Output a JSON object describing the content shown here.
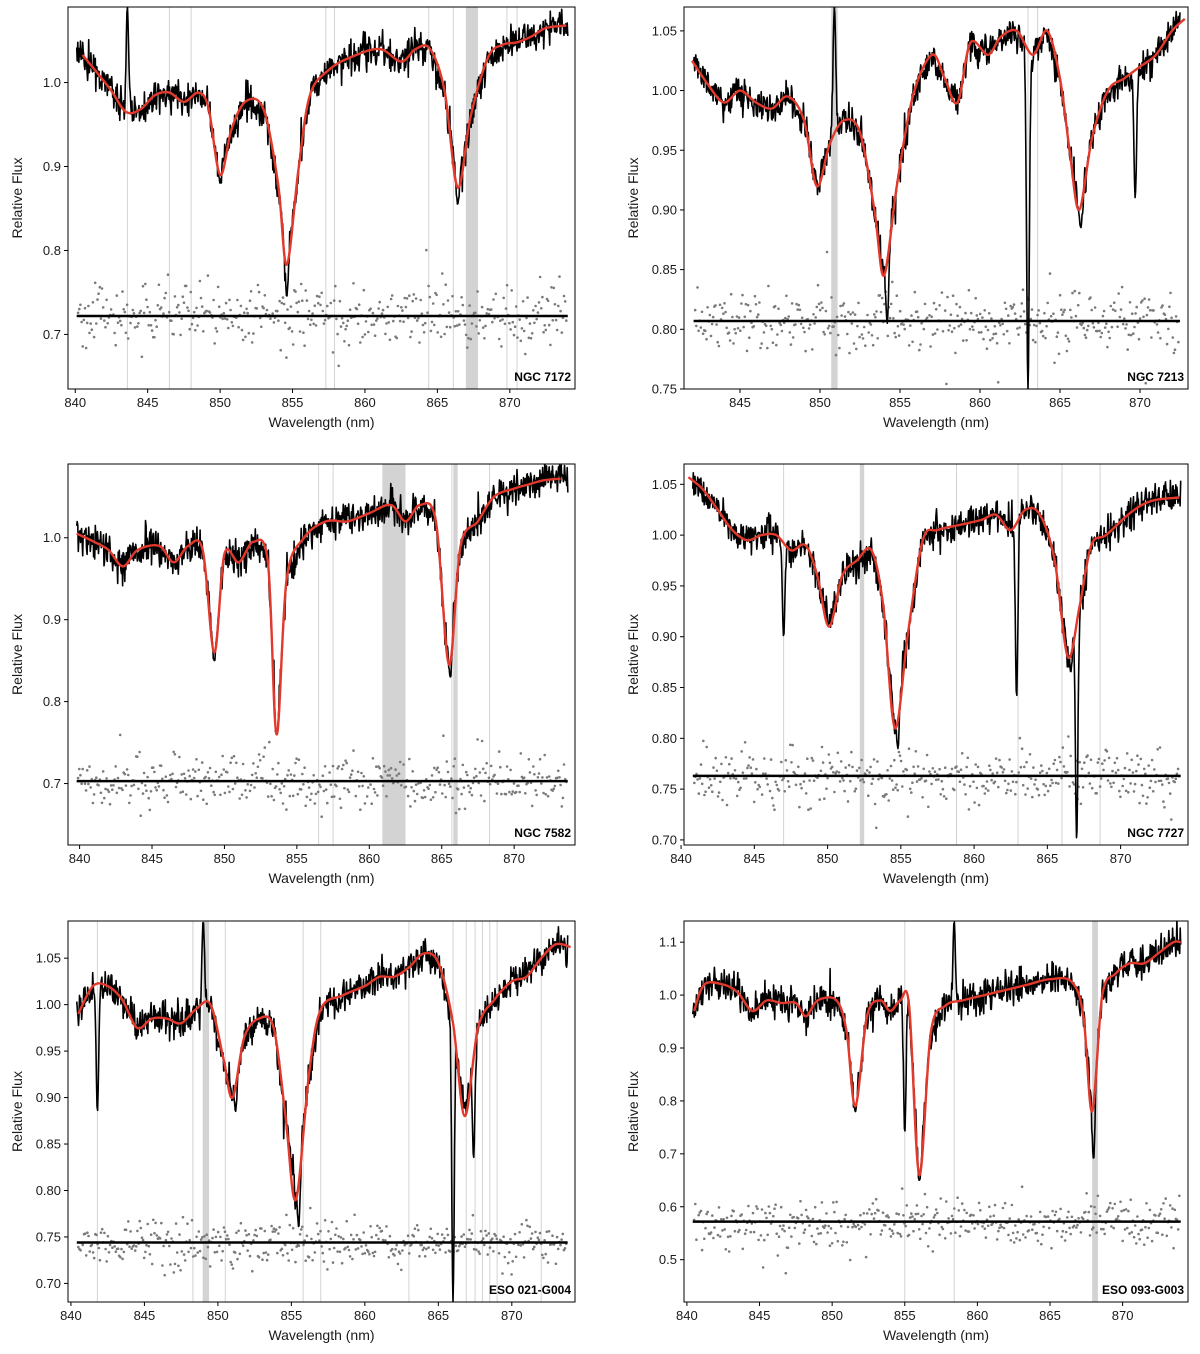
{
  "figure": {
    "colors": {
      "data": "#000000",
      "model": "#e3392c",
      "residuals": "#7a7a7a",
      "masked": "#d3d3d3",
      "zero_line": "#000000"
    }
  },
  "chart_data": [
    {
      "type": "line",
      "object_label": "NGC 7172",
      "xlabel": "Wavelength (nm)",
      "ylabel": "Relative Flux",
      "xlim": [
        839.5,
        874.5
      ],
      "ylim": [
        0.635,
        1.09
      ],
      "xticks": [
        840,
        845,
        850,
        855,
        860,
        865,
        870
      ],
      "xtick_labels": [
        "840",
        "845",
        "850",
        "855",
        "860",
        "865",
        "870"
      ],
      "yticks": [
        0.7,
        0.8,
        0.9,
        1.0
      ],
      "ytick_labels": [
        "0.7",
        "0.8",
        "0.9",
        "1.0"
      ],
      "residual_zero_level": 0.722,
      "masked_lines": [
        843.6,
        846.5,
        848.0,
        857.3,
        857.9,
        864.4,
        866.1,
        867.0,
        867.4,
        867.6,
        869.8,
        870.5
      ],
      "masked_bands": [
        [
          867.0,
          867.8
        ]
      ],
      "model_points": [
        [
          840.5,
          1.033
        ],
        [
          841.5,
          1.012
        ],
        [
          842.5,
          0.99
        ],
        [
          843.5,
          0.965
        ],
        [
          844.5,
          0.968
        ],
        [
          845.5,
          0.985
        ],
        [
          846.5,
          0.988
        ],
        [
          847.5,
          0.977
        ],
        [
          848.5,
          0.988
        ],
        [
          849.2,
          0.97
        ],
        [
          850.0,
          0.89
        ],
        [
          850.8,
          0.945
        ],
        [
          851.8,
          0.978
        ],
        [
          853.0,
          0.968
        ],
        [
          854.0,
          0.88
        ],
        [
          854.6,
          0.783
        ],
        [
          855.4,
          0.895
        ],
        [
          856.2,
          0.985
        ],
        [
          857.5,
          1.015
        ],
        [
          859.0,
          1.03
        ],
        [
          861.0,
          1.04
        ],
        [
          862.5,
          1.025
        ],
        [
          863.5,
          1.04
        ],
        [
          864.5,
          1.04
        ],
        [
          865.5,
          0.99
        ],
        [
          866.4,
          0.875
        ],
        [
          867.3,
          0.96
        ],
        [
          868.5,
          1.03
        ],
        [
          869.5,
          1.045
        ],
        [
          870.5,
          1.048
        ],
        [
          871.5,
          1.055
        ],
        [
          872.5,
          1.065
        ],
        [
          873.9,
          1.068
        ]
      ],
      "data_features": [
        {
          "x": 854.6,
          "y": 0.745
        },
        {
          "x": 850.0,
          "y": 0.88
        },
        {
          "x": 866.4,
          "y": 0.855
        },
        {
          "x": 843.6,
          "y": 1.09
        }
      ],
      "residual_scatter": 0.017
    },
    {
      "type": "line",
      "object_label": "NGC 7213",
      "xlabel": "Wavelength (nm)",
      "ylabel": "Relative Flux",
      "xlim": [
        841.5,
        873.0
      ],
      "ylim": [
        0.75,
        1.07
      ],
      "xticks": [
        845,
        850,
        855,
        860,
        865,
        870
      ],
      "xtick_labels": [
        "845",
        "850",
        "855",
        "860",
        "865",
        "870"
      ],
      "yticks": [
        0.75,
        0.8,
        0.85,
        0.9,
        0.95,
        1.0,
        1.05
      ],
      "ytick_labels": [
        "0.75",
        "0.80",
        "0.85",
        "0.90",
        "0.95",
        "1.00",
        "1.05"
      ],
      "residual_zero_level": 0.807,
      "masked_lines": [
        850.9,
        863.0,
        863.6
      ],
      "masked_bands": [
        [
          850.7,
          851.1
        ]
      ],
      "model_points": [
        [
          842.0,
          1.025
        ],
        [
          843.0,
          1.005
        ],
        [
          844.0,
          0.99
        ],
        [
          845.0,
          1.0
        ],
        [
          846.0,
          0.99
        ],
        [
          847.0,
          0.985
        ],
        [
          848.0,
          0.995
        ],
        [
          849.0,
          0.975
        ],
        [
          849.8,
          0.92
        ],
        [
          850.6,
          0.955
        ],
        [
          851.5,
          0.975
        ],
        [
          852.5,
          0.965
        ],
        [
          853.4,
          0.9
        ],
        [
          854.0,
          0.845
        ],
        [
          854.8,
          0.92
        ],
        [
          855.8,
          0.995
        ],
        [
          857.0,
          1.03
        ],
        [
          857.8,
          1.01
        ],
        [
          858.6,
          0.99
        ],
        [
          859.4,
          1.04
        ],
        [
          860.5,
          1.03
        ],
        [
          861.3,
          1.045
        ],
        [
          862.3,
          1.05
        ],
        [
          863.3,
          1.03
        ],
        [
          864.2,
          1.05
        ],
        [
          865.0,
          1.01
        ],
        [
          865.6,
          0.95
        ],
        [
          866.2,
          0.9
        ],
        [
          867.0,
          0.96
        ],
        [
          868.0,
          1.0
        ],
        [
          869.0,
          1.01
        ],
        [
          870.0,
          1.02
        ],
        [
          871.0,
          1.03
        ],
        [
          872.0,
          1.05
        ],
        [
          872.8,
          1.06
        ]
      ],
      "data_features": [
        {
          "x": 854.2,
          "y": 0.805
        },
        {
          "x": 866.3,
          "y": 0.885
        },
        {
          "x": 850.9,
          "y": 1.07
        },
        {
          "x": 863.0,
          "y": 0.75
        },
        {
          "x": 869.7,
          "y": 0.91
        }
      ],
      "residual_scatter": 0.012
    },
    {
      "type": "line",
      "object_label": "NGC 7582",
      "xlabel": "Wavelength (nm)",
      "ylabel": "Relative Flux",
      "xlim": [
        839.2,
        874.2
      ],
      "ylim": [
        0.625,
        1.09
      ],
      "xticks": [
        840,
        845,
        850,
        855,
        860,
        865,
        870
      ],
      "xtick_labels": [
        "840",
        "845",
        "850",
        "855",
        "860",
        "865",
        "870"
      ],
      "yticks": [
        0.7,
        0.8,
        0.9,
        1.0
      ],
      "ytick_labels": [
        "0.7",
        "0.8",
        "0.9",
        "1.0"
      ],
      "residual_zero_level": 0.703,
      "masked_lines": [
        856.5,
        857.5,
        865.7,
        868.3
      ],
      "masked_bands": [
        [
          860.9,
          862.5
        ],
        [
          865.8,
          866.1
        ]
      ],
      "model_points": [
        [
          839.8,
          1.005
        ],
        [
          841.0,
          0.995
        ],
        [
          842.0,
          0.985
        ],
        [
          843.0,
          0.965
        ],
        [
          844.0,
          0.985
        ],
        [
          845.5,
          0.99
        ],
        [
          846.5,
          0.97
        ],
        [
          847.5,
          0.99
        ],
        [
          848.5,
          0.985
        ],
        [
          849.3,
          0.86
        ],
        [
          850.0,
          0.98
        ],
        [
          851.0,
          0.97
        ],
        [
          852.0,
          0.995
        ],
        [
          853.0,
          0.97
        ],
        [
          853.6,
          0.76
        ],
        [
          854.3,
          0.95
        ],
        [
          855.5,
          1.0
        ],
        [
          857.0,
          1.02
        ],
        [
          858.5,
          1.02
        ],
        [
          860.0,
          1.03
        ],
        [
          861.5,
          1.04
        ],
        [
          862.5,
          1.02
        ],
        [
          863.5,
          1.04
        ],
        [
          864.6,
          1.02
        ],
        [
          865.5,
          0.845
        ],
        [
          866.3,
          0.99
        ],
        [
          867.5,
          1.02
        ],
        [
          868.6,
          1.05
        ],
        [
          870.0,
          1.06
        ],
        [
          871.0,
          1.065
        ],
        [
          872.0,
          1.07
        ],
        [
          873.2,
          1.072
        ]
      ],
      "data_features": [
        {
          "x": 853.6,
          "y": 0.76
        },
        {
          "x": 849.3,
          "y": 0.85
        },
        {
          "x": 865.6,
          "y": 0.83
        }
      ],
      "residual_scatter": 0.016
    },
    {
      "type": "line",
      "object_label": "NGC 7727",
      "xlabel": "Wavelength (nm)",
      "ylabel": "Relative Flux",
      "xlim": [
        840.2,
        874.6
      ],
      "ylim": [
        0.695,
        1.07
      ],
      "xticks": [
        840,
        845,
        850,
        855,
        860,
        865,
        870
      ],
      "xtick_labels": [
        "840",
        "845",
        "850",
        "855",
        "860",
        "865",
        "870"
      ],
      "yticks": [
        0.7,
        0.75,
        0.8,
        0.85,
        0.9,
        0.95,
        1.0,
        1.05
      ],
      "ytick_labels": [
        "0.70",
        "0.75",
        "0.80",
        "0.85",
        "0.90",
        "0.95",
        "1.00",
        "1.05"
      ],
      "residual_zero_level": 0.763,
      "masked_lines": [
        847.0,
        858.8,
        863.0,
        866.0,
        868.6
      ],
      "masked_bands": [
        [
          852.2,
          852.5
        ]
      ],
      "model_points": [
        [
          840.5,
          1.057
        ],
        [
          841.5,
          1.045
        ],
        [
          842.5,
          1.025
        ],
        [
          843.5,
          1.005
        ],
        [
          844.5,
          0.995
        ],
        [
          845.5,
          1.0
        ],
        [
          846.5,
          1.0
        ],
        [
          847.5,
          0.985
        ],
        [
          848.5,
          0.99
        ],
        [
          849.3,
          0.96
        ],
        [
          850.1,
          0.91
        ],
        [
          851.0,
          0.96
        ],
        [
          852.0,
          0.975
        ],
        [
          853.0,
          0.985
        ],
        [
          853.8,
          0.93
        ],
        [
          854.6,
          0.81
        ],
        [
          855.5,
          0.905
        ],
        [
          856.5,
          0.995
        ],
        [
          857.5,
          1.005
        ],
        [
          859.0,
          1.01
        ],
        [
          860.5,
          1.015
        ],
        [
          861.5,
          1.02
        ],
        [
          862.5,
          1.005
        ],
        [
          863.5,
          1.025
        ],
        [
          864.5,
          1.02
        ],
        [
          865.5,
          0.975
        ],
        [
          866.4,
          0.88
        ],
        [
          867.2,
          0.93
        ],
        [
          868.0,
          0.99
        ],
        [
          869.0,
          1.0
        ],
        [
          870.5,
          1.02
        ],
        [
          871.5,
          1.03
        ],
        [
          872.5,
          1.035
        ],
        [
          874.0,
          1.037
        ]
      ],
      "data_features": [
        {
          "x": 854.8,
          "y": 0.79
        },
        {
          "x": 866.6,
          "y": 0.865
        },
        {
          "x": 847.0,
          "y": 0.9
        },
        {
          "x": 862.9,
          "y": 0.84
        },
        {
          "x": 867.0,
          "y": 0.7
        }
      ],
      "residual_scatter": 0.014
    },
    {
      "type": "line",
      "object_label": "ESO 021-G004",
      "xlabel": "Wavelength (nm)",
      "ylabel": "Relative Flux",
      "xlim": [
        839.8,
        874.3
      ],
      "ylim": [
        0.68,
        1.09
      ],
      "xticks": [
        840,
        845,
        850,
        855,
        860,
        865,
        870
      ],
      "xtick_labels": [
        "840",
        "845",
        "850",
        "855",
        "860",
        "865",
        "870"
      ],
      "yticks": [
        0.7,
        0.75,
        0.8,
        0.85,
        0.9,
        0.95,
        1.0,
        1.05
      ],
      "ytick_labels": [
        "0.70",
        "0.75",
        "0.80",
        "0.85",
        "0.90",
        "0.95",
        "1.00",
        "1.05"
      ],
      "residual_zero_level": 0.744,
      "masked_lines": [
        841.8,
        848.3,
        849.0,
        850.5,
        855.8,
        857.0,
        863.0,
        866.0,
        866.9,
        867.5,
        868.0,
        868.5,
        869.0,
        872.0
      ],
      "masked_bands": [
        [
          849.0,
          849.4
        ]
      ],
      "model_points": [
        [
          840.5,
          0.99
        ],
        [
          841.5,
          1.02
        ],
        [
          842.5,
          1.02
        ],
        [
          843.5,
          1.005
        ],
        [
          844.5,
          0.975
        ],
        [
          845.5,
          0.985
        ],
        [
          846.5,
          0.985
        ],
        [
          847.5,
          0.98
        ],
        [
          848.5,
          0.995
        ],
        [
          849.5,
          1.0
        ],
        [
          850.4,
          0.94
        ],
        [
          851.0,
          0.9
        ],
        [
          851.8,
          0.965
        ],
        [
          852.8,
          0.985
        ],
        [
          853.8,
          0.975
        ],
        [
          854.6,
          0.88
        ],
        [
          855.3,
          0.79
        ],
        [
          856.2,
          0.925
        ],
        [
          857.0,
          0.995
        ],
        [
          858.5,
          1.01
        ],
        [
          860.0,
          1.02
        ],
        [
          861.0,
          1.03
        ],
        [
          862.0,
          1.03
        ],
        [
          863.0,
          1.04
        ],
        [
          864.0,
          1.055
        ],
        [
          865.0,
          1.045
        ],
        [
          866.0,
          0.98
        ],
        [
          866.8,
          0.88
        ],
        [
          867.7,
          0.975
        ],
        [
          868.8,
          1.005
        ],
        [
          870.0,
          1.025
        ],
        [
          871.0,
          1.03
        ],
        [
          872.0,
          1.05
        ],
        [
          873.0,
          1.065
        ],
        [
          874.0,
          1.062
        ]
      ],
      "data_features": [
        {
          "x": 855.5,
          "y": 0.76
        },
        {
          "x": 867.4,
          "y": 0.835
        },
        {
          "x": 849.0,
          "y": 1.09
        },
        {
          "x": 851.2,
          "y": 0.885
        },
        {
          "x": 841.8,
          "y": 0.885
        },
        {
          "x": 866.0,
          "y": 0.68
        }
      ],
      "residual_scatter": 0.011
    },
    {
      "type": "line",
      "object_label": "ESO 093-G003",
      "xlabel": "Wavelength (nm)",
      "ylabel": "Relative Flux",
      "xlim": [
        839.8,
        874.5
      ],
      "ylim": [
        0.42,
        1.14
      ],
      "xticks": [
        840,
        845,
        850,
        855,
        860,
        865,
        870
      ],
      "xtick_labels": [
        "840",
        "845",
        "850",
        "855",
        "860",
        "865",
        "870"
      ],
      "yticks": [
        0.5,
        0.6,
        0.7,
        0.8,
        0.9,
        1.0,
        1.1
      ],
      "ytick_labels": [
        "0.5",
        "0.6",
        "0.7",
        "0.8",
        "0.9",
        "1.0",
        "1.1"
      ],
      "residual_zero_level": 0.572,
      "masked_lines": [
        855.0,
        858.4,
        868.0
      ],
      "masked_bands": [
        [
          867.9,
          868.3
        ]
      ],
      "model_points": [
        [
          840.5,
          0.97
        ],
        [
          841.2,
          1.02
        ],
        [
          842.5,
          1.02
        ],
        [
          843.5,
          1.005
        ],
        [
          844.5,
          0.97
        ],
        [
          845.5,
          0.99
        ],
        [
          846.5,
          0.985
        ],
        [
          847.5,
          0.985
        ],
        [
          848.2,
          0.96
        ],
        [
          849.0,
          0.99
        ],
        [
          850.3,
          0.99
        ],
        [
          851.0,
          0.93
        ],
        [
          851.6,
          0.79
        ],
        [
          852.4,
          0.96
        ],
        [
          853.3,
          0.99
        ],
        [
          854.0,
          0.97
        ],
        [
          854.7,
          0.99
        ],
        [
          855.3,
          0.98
        ],
        [
          856.0,
          0.66
        ],
        [
          856.8,
          0.93
        ],
        [
          857.8,
          0.98
        ],
        [
          859.0,
          0.99
        ],
        [
          860.5,
          1.0
        ],
        [
          862.0,
          1.01
        ],
        [
          863.5,
          1.02
        ],
        [
          865.0,
          1.03
        ],
        [
          866.5,
          1.025
        ],
        [
          867.3,
          0.96
        ],
        [
          867.9,
          0.78
        ],
        [
          868.6,
          1.0
        ],
        [
          869.5,
          1.04
        ],
        [
          870.5,
          1.06
        ],
        [
          871.5,
          1.06
        ],
        [
          872.5,
          1.08
        ],
        [
          873.5,
          1.1
        ],
        [
          874.0,
          1.1
        ]
      ],
      "data_features": [
        {
          "x": 856.0,
          "y": 0.65
        },
        {
          "x": 868.0,
          "y": 0.69
        },
        {
          "x": 851.6,
          "y": 0.78
        },
        {
          "x": 858.4,
          "y": 1.14
        },
        {
          "x": 855.0,
          "y": 0.74
        }
      ],
      "residual_scatter": 0.022
    }
  ]
}
